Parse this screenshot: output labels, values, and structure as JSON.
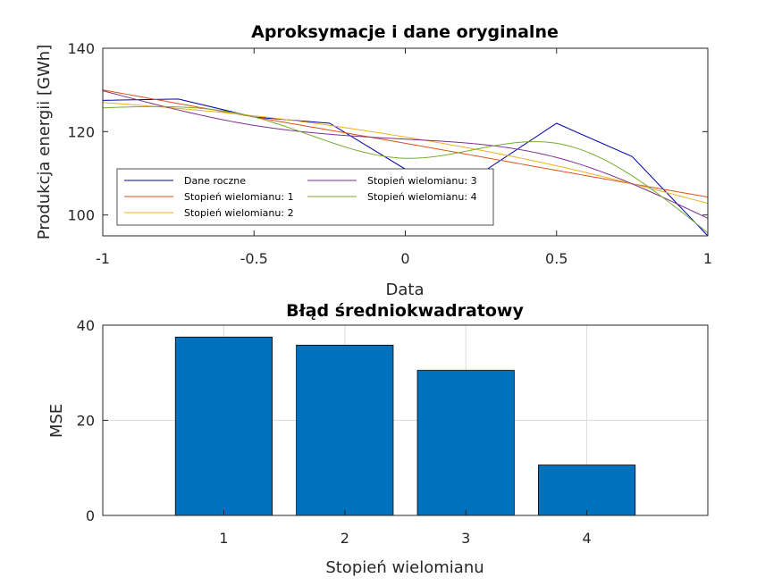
{
  "chart_data": [
    {
      "type": "line",
      "title": "Aproksymacje i dane oryginalne",
      "xlabel": "Data",
      "ylabel": "Produkcja energii [GWh]",
      "xlim": [
        -1,
        1
      ],
      "ylim": [
        95,
        140
      ],
      "xticks": [
        -1,
        -0.5,
        0,
        0.5,
        1
      ],
      "xtick_labels": [
        "-1",
        "-0.5",
        "0",
        "0.5",
        "1"
      ],
      "yticks": [
        100,
        120,
        140
      ],
      "ytick_labels": [
        "100",
        "120",
        "140"
      ],
      "grid": false,
      "legend_position": "bottom-left",
      "legend_columns": 2,
      "series": [
        {
          "name": "Dane roczne",
          "color": "#0000aa",
          "x": [
            -1,
            -0.75,
            -0.5,
            -0.25,
            0,
            0.25,
            0.5,
            0.75,
            1
          ],
          "y": [
            127.5,
            127.8,
            123.5,
            122,
            111,
            110,
            122,
            114,
            95
          ]
        },
        {
          "name": "Stopień wielomianu: 1",
          "color": "#d95319",
          "x": [
            -1,
            -0.5,
            0,
            0.5,
            1
          ],
          "y": [
            130,
            123.5,
            117.2,
            110.7,
            104.3
          ]
        },
        {
          "name": "Stopień wielomianu: 2",
          "color": "#edb120",
          "x": [
            -1,
            -0.5,
            0,
            0.5,
            1
          ],
          "y": [
            127,
            123.8,
            118.7,
            111.8,
            102.8
          ]
        },
        {
          "name": "Stopień wielomianu: 3",
          "color": "#7e2f8e",
          "x": [
            -1,
            -0.5,
            0,
            0.5,
            1
          ],
          "y": [
            129.8,
            121.5,
            118.2,
            113.8,
            99.2
          ]
        },
        {
          "name": "Stopień wielomianu: 4",
          "color": "#77ac30",
          "x": [
            -1,
            -0.5,
            0,
            0.5,
            1
          ],
          "y": [
            125.7,
            123.5,
            113.6,
            117.2,
            95.7
          ]
        }
      ]
    },
    {
      "type": "bar",
      "title": "Błąd średniokwadratowy",
      "xlabel": "Stopień wielomianu",
      "ylabel": "MSE",
      "categories": [
        "1",
        "2",
        "3",
        "4"
      ],
      "values": [
        37.5,
        35.8,
        30.5,
        10.6
      ],
      "xlim": [
        0,
        5
      ],
      "ylim": [
        0,
        40
      ],
      "yticks": [
        0,
        20,
        40
      ],
      "ytick_labels": [
        "0",
        "20",
        "40"
      ],
      "grid": true,
      "bar_color": "#0072bd"
    }
  ]
}
